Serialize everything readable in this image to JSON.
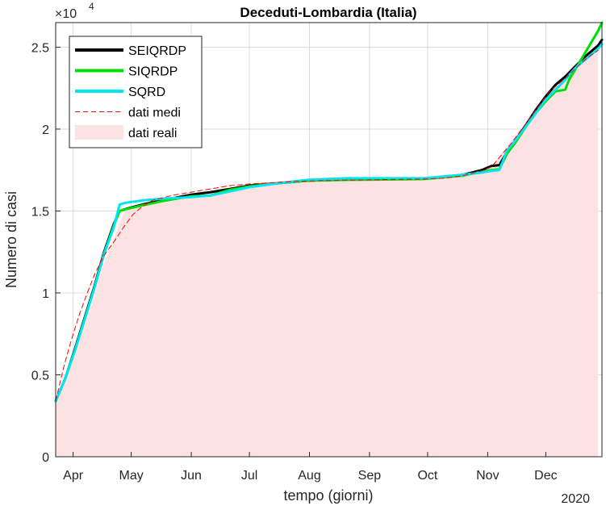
{
  "chart_data": {
    "type": "line",
    "title": "Deceduti-Lombardia (Italia)",
    "xlabel": "tempo (giorni)",
    "ylabel": "Numero di casi",
    "y_exponent_label": "×10",
    "y_exponent_power": "4",
    "x_year_label": "2020",
    "ylim": [
      0,
      26500
    ],
    "x_day_range": [
      0,
      282
    ],
    "x_ticks": [
      {
        "label": "Apr",
        "day": 9
      },
      {
        "label": "May",
        "day": 39
      },
      {
        "label": "Jun",
        "day": 70
      },
      {
        "label": "Jul",
        "day": 100
      },
      {
        "label": "Aug",
        "day": 131
      },
      {
        "label": "Sep",
        "day": 162
      },
      {
        "label": "Oct",
        "day": 192
      },
      {
        "label": "Nov",
        "day": 223
      },
      {
        "label": "Dec",
        "day": 253
      }
    ],
    "y_ticks": [
      {
        "label": "0",
        "value": 0
      },
      {
        "label": "0.5",
        "value": 5000
      },
      {
        "label": "1",
        "value": 10000
      },
      {
        "label": "1.5",
        "value": 15000
      },
      {
        "label": "2",
        "value": 20000
      },
      {
        "label": "2.5",
        "value": 25000
      }
    ],
    "grid": true,
    "legend_position": "top-left",
    "area": {
      "name": "dati reali",
      "color": "#fde2e4",
      "points": [
        [
          0,
          3400
        ],
        [
          5,
          4700
        ],
        [
          10,
          6200
        ],
        [
          15,
          8000
        ],
        [
          20,
          9800
        ],
        [
          25,
          11800
        ],
        [
          30,
          13300
        ],
        [
          33,
          14300
        ],
        [
          36,
          15000
        ],
        [
          40,
          15200
        ],
        [
          45,
          15450
        ],
        [
          50,
          15600
        ],
        [
          60,
          15850
        ],
        [
          70,
          16000
        ],
        [
          80,
          16200
        ],
        [
          90,
          16350
        ],
        [
          100,
          16500
        ],
        [
          110,
          16650
        ],
        [
          120,
          16750
        ],
        [
          130,
          16850
        ],
        [
          140,
          16900
        ],
        [
          150,
          16920
        ],
        [
          160,
          16930
        ],
        [
          170,
          16940
        ],
        [
          180,
          16950
        ],
        [
          190,
          16970
        ],
        [
          200,
          17000
        ],
        [
          210,
          17150
        ],
        [
          220,
          17450
        ],
        [
          225,
          17700
        ],
        [
          230,
          18500
        ],
        [
          235,
          19300
        ],
        [
          240,
          20000
        ],
        [
          245,
          20700
        ],
        [
          250,
          21400
        ],
        [
          255,
          22200
        ],
        [
          260,
          22800
        ],
        [
          265,
          23300
        ],
        [
          270,
          23900
        ],
        [
          275,
          24400
        ],
        [
          280,
          24800
        ]
      ]
    },
    "series": [
      {
        "name": "SEIQRDP",
        "color": "#000000",
        "width": 3,
        "dash": "",
        "points": [
          [
            0,
            3400
          ],
          [
            5,
            4800
          ],
          [
            10,
            6600
          ],
          [
            15,
            8500
          ],
          [
            20,
            10400
          ],
          [
            25,
            12500
          ],
          [
            30,
            14200
          ],
          [
            33,
            15000
          ],
          [
            37,
            15150
          ],
          [
            45,
            15400
          ],
          [
            55,
            15650
          ],
          [
            70,
            16000
          ],
          [
            80,
            16150
          ],
          [
            90,
            16350
          ],
          [
            100,
            16550
          ],
          [
            115,
            16700
          ],
          [
            130,
            16850
          ],
          [
            150,
            16920
          ],
          [
            170,
            16950
          ],
          [
            190,
            16980
          ],
          [
            210,
            17200
          ],
          [
            220,
            17500
          ],
          [
            225,
            17750
          ],
          [
            229,
            17800
          ],
          [
            233,
            18600
          ],
          [
            238,
            19400
          ],
          [
            243,
            20300
          ],
          [
            248,
            21200
          ],
          [
            253,
            22000
          ],
          [
            258,
            22700
          ],
          [
            263,
            23200
          ],
          [
            268,
            23800
          ],
          [
            274,
            24500
          ],
          [
            280,
            25100
          ],
          [
            282,
            25450
          ]
        ]
      },
      {
        "name": "SIQRDP",
        "color": "#00e000",
        "width": 3,
        "dash": "",
        "points": [
          [
            0,
            3400
          ],
          [
            5,
            4800
          ],
          [
            10,
            6500
          ],
          [
            15,
            8400
          ],
          [
            20,
            10300
          ],
          [
            25,
            12400
          ],
          [
            30,
            14100
          ],
          [
            33,
            15000
          ],
          [
            36,
            15100
          ],
          [
            45,
            15350
          ],
          [
            55,
            15600
          ],
          [
            70,
            15900
          ],
          [
            80,
            15950
          ],
          [
            90,
            16300
          ],
          [
            100,
            16500
          ],
          [
            115,
            16700
          ],
          [
            130,
            16850
          ],
          [
            150,
            16900
          ],
          [
            170,
            16920
          ],
          [
            190,
            16950
          ],
          [
            210,
            17150
          ],
          [
            220,
            17400
          ],
          [
            225,
            17500
          ],
          [
            229,
            17550
          ],
          [
            233,
            18500
          ],
          [
            238,
            19300
          ],
          [
            243,
            20200
          ],
          [
            248,
            21000
          ],
          [
            253,
            21700
          ],
          [
            258,
            22300
          ],
          [
            263,
            22400
          ],
          [
            265,
            23000
          ],
          [
            270,
            24000
          ],
          [
            275,
            25000
          ],
          [
            280,
            26000
          ],
          [
            282,
            26500
          ]
        ]
      },
      {
        "name": "SQRD",
        "color": "#00e5f0",
        "width": 3,
        "dash": "",
        "points": [
          [
            0,
            3400
          ],
          [
            5,
            4800
          ],
          [
            10,
            6500
          ],
          [
            15,
            8400
          ],
          [
            20,
            10300
          ],
          [
            25,
            12400
          ],
          [
            30,
            14000
          ],
          [
            33,
            15400
          ],
          [
            36,
            15500
          ],
          [
            45,
            15650
          ],
          [
            55,
            15750
          ],
          [
            70,
            15850
          ],
          [
            80,
            15950
          ],
          [
            90,
            16200
          ],
          [
            100,
            16450
          ],
          [
            115,
            16700
          ],
          [
            130,
            16900
          ],
          [
            150,
            17000
          ],
          [
            170,
            17000
          ],
          [
            190,
            17000
          ],
          [
            210,
            17200
          ],
          [
            220,
            17350
          ],
          [
            225,
            17450
          ],
          [
            229,
            17500
          ],
          [
            233,
            18700
          ],
          [
            238,
            19400
          ],
          [
            243,
            20200
          ],
          [
            248,
            21000
          ],
          [
            253,
            21800
          ],
          [
            258,
            22400
          ],
          [
            263,
            23000
          ],
          [
            268,
            23700
          ],
          [
            274,
            24300
          ],
          [
            280,
            24900
          ],
          [
            282,
            25200
          ]
        ]
      },
      {
        "name": "dati medi",
        "color": "#ff0000",
        "width": 1,
        "dash": "6,4",
        "points": [
          [
            0,
            3400
          ],
          [
            4,
            5400
          ],
          [
            8,
            7100
          ],
          [
            12,
            8600
          ],
          [
            16,
            9900
          ],
          [
            20,
            11100
          ],
          [
            25,
            12300
          ],
          [
            30,
            13100
          ],
          [
            35,
            14000
          ],
          [
            40,
            14800
          ],
          [
            45,
            15300
          ],
          [
            50,
            15650
          ],
          [
            60,
            15950
          ],
          [
            70,
            16150
          ],
          [
            80,
            16350
          ],
          [
            90,
            16550
          ],
          [
            100,
            16650
          ],
          [
            110,
            16720
          ],
          [
            120,
            16780
          ],
          [
            130,
            16830
          ],
          [
            150,
            16880
          ],
          [
            170,
            16920
          ],
          [
            190,
            16950
          ],
          [
            200,
            17000
          ],
          [
            210,
            17150
          ],
          [
            220,
            17450
          ],
          [
            225,
            17700
          ],
          [
            230,
            18400
          ],
          [
            235,
            19100
          ],
          [
            240,
            19900
          ],
          [
            245,
            20700
          ],
          [
            250,
            21500
          ],
          [
            255,
            22300
          ],
          [
            260,
            22800
          ],
          [
            265,
            23300
          ],
          [
            270,
            23900
          ],
          [
            275,
            24400
          ],
          [
            280,
            24800
          ]
        ]
      }
    ]
  }
}
